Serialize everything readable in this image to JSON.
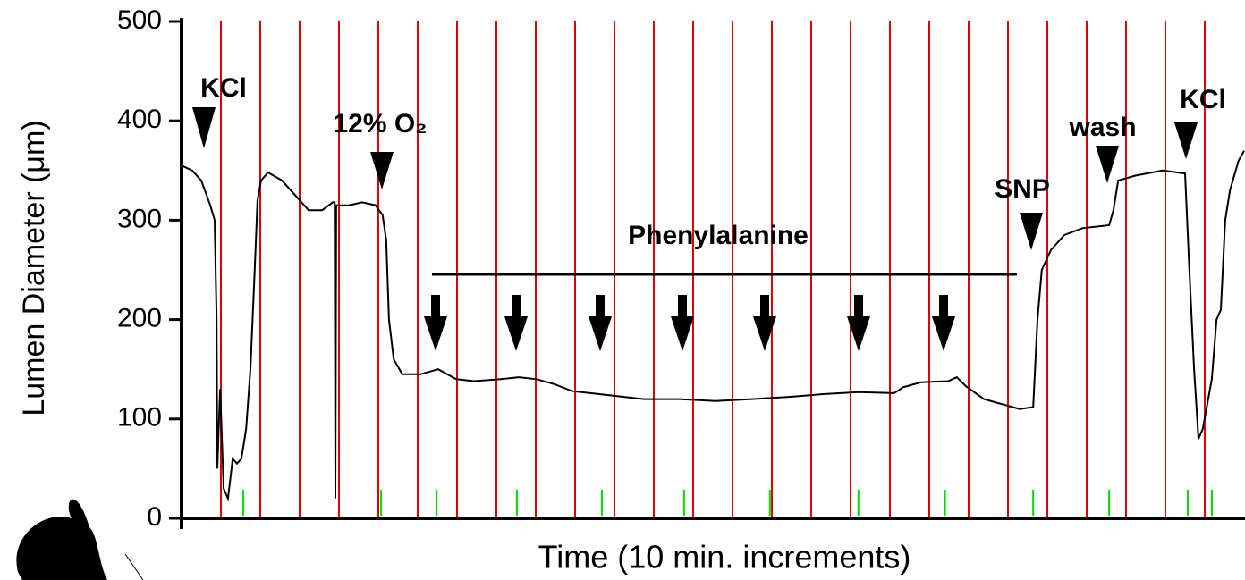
{
  "chart_data": {
    "type": "line",
    "y_label": "Lumen Diameter (μm)",
    "x_label": "Time (10 min. increments)",
    "ylim": [
      0,
      500
    ],
    "yticks": [
      0,
      100,
      200,
      300,
      400,
      500
    ],
    "xlim": [
      0,
      270
    ],
    "color": "#000000",
    "grid_color": "#e00000",
    "marker_color": "#00dd00",
    "x_grid": [
      10,
      20,
      30,
      40,
      50,
      60,
      70,
      80,
      90,
      100,
      110,
      120,
      130,
      140,
      150,
      160,
      170,
      180,
      190,
      200,
      210,
      220,
      230,
      240,
      250,
      260
    ],
    "event_markers": [
      15.7,
      50.7,
      64.8,
      85.2,
      106.8,
      127.7,
      149.5,
      172,
      194,
      216.4,
      235.7,
      255.7,
      261.8
    ],
    "annotations": [
      "KCl",
      "12% O₂",
      "Phenylalanine",
      "SNP",
      "wash",
      "KCl"
    ],
    "x": [
      0,
      2.7,
      5.0,
      7.3,
      8.4,
      8.9,
      9.1,
      9.8,
      10.7,
      11.8,
      13.0,
      14.1,
      15.2,
      16.4,
      17.5,
      18.6,
      19.3,
      20.2,
      22.0,
      25.5,
      28.9,
      32.3,
      35.7,
      38.4,
      38.9,
      39.1,
      39.3,
      42.5,
      45.9,
      49.3,
      51.1,
      52.0,
      52.7,
      53.9,
      56.1,
      60.7,
      65.2,
      67.5,
      69.8,
      74.3,
      81.1,
      85.7,
      90.2,
      94.8,
      99.3,
      103.9,
      110.7,
      117.5,
      126.6,
      135.7,
      144.8,
      153.9,
      163.0,
      172.0,
      181.1,
      183.4,
      188.0,
      194.8,
      197.0,
      199.3,
      203.9,
      208.4,
      213.0,
      216.4,
      217.5,
      218.6,
      220.9,
      224.3,
      228.9,
      235.7,
      236.8,
      238.0,
      242.5,
      249.3,
      255.0,
      256.1,
      257.3,
      258.4,
      259.5,
      261.8,
      263.0,
      264.1,
      265.2,
      266.4,
      268.6,
      270
    ],
    "values": [
      355,
      350,
      340,
      315,
      300,
      200,
      50,
      130,
      30,
      20,
      60,
      55,
      60,
      90,
      150,
      250,
      320,
      340,
      348,
      340,
      325,
      310,
      310,
      318,
      318,
      20,
      315,
      315,
      318,
      315,
      305,
      280,
      200,
      160,
      145,
      145,
      150,
      145,
      140,
      138,
      140,
      142,
      140,
      135,
      128,
      126,
      123,
      120,
      120,
      118,
      120,
      122,
      125,
      127,
      126,
      132,
      137,
      138,
      142,
      133,
      120,
      115,
      110,
      112,
      200,
      250,
      270,
      285,
      292,
      295,
      310,
      340,
      345,
      350,
      347,
      250,
      150,
      80,
      90,
      140,
      200,
      210,
      300,
      330,
      360,
      370
    ]
  }
}
